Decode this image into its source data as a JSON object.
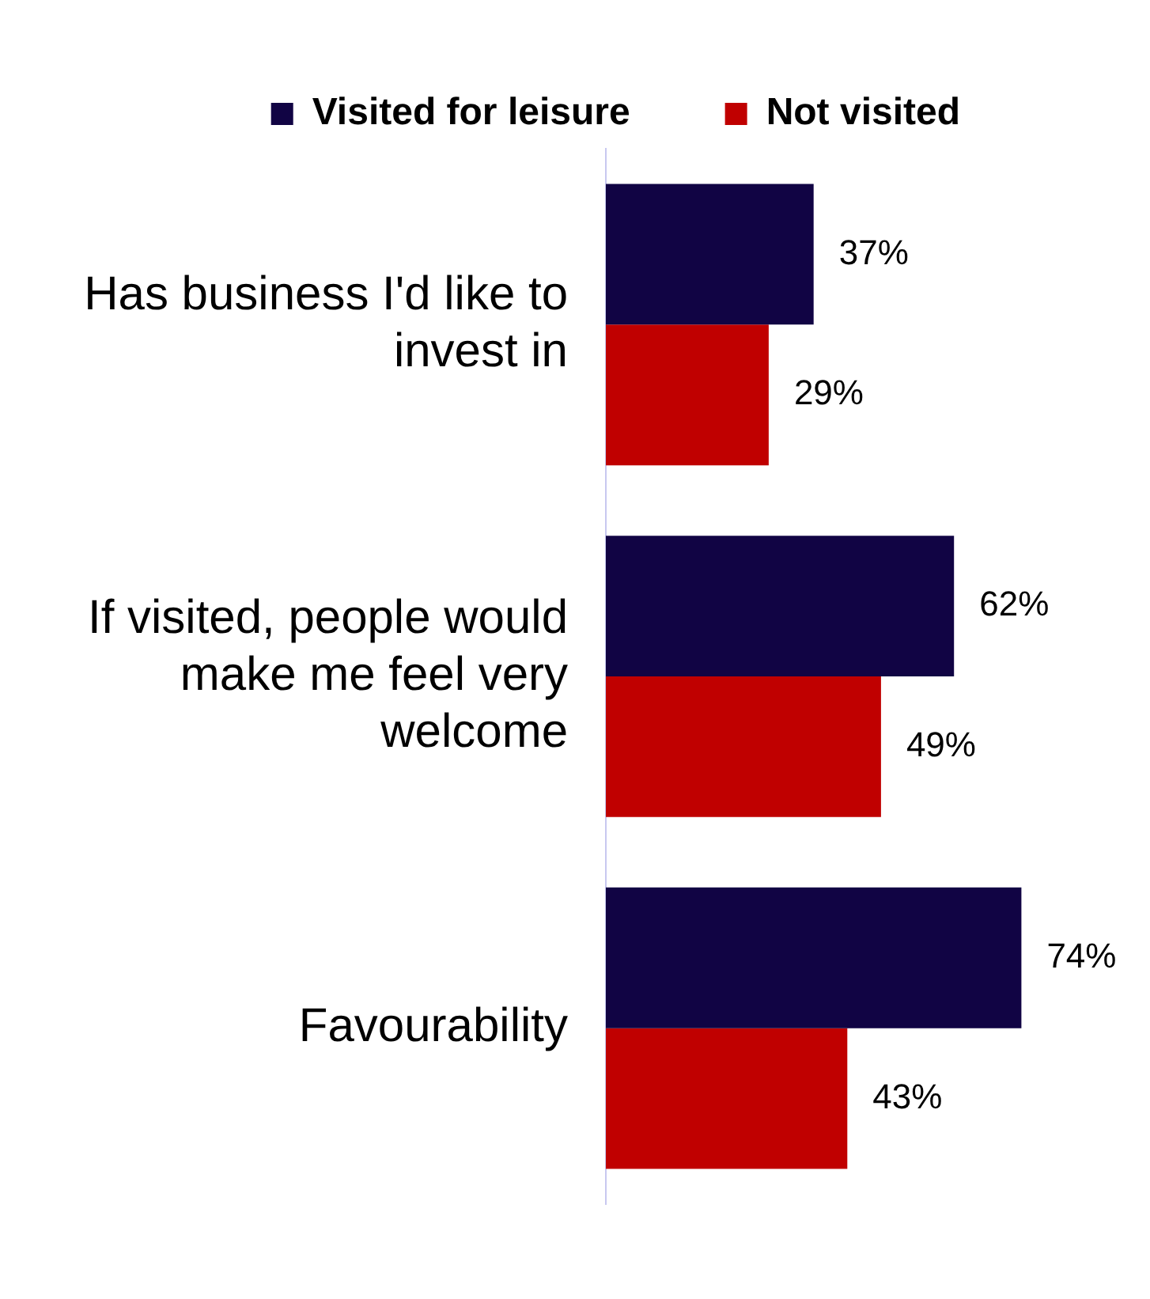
{
  "chart_data": {
    "type": "bar",
    "orientation": "horizontal",
    "categories": [
      "Has business I'd like to invest in",
      "If visited, people would make me feel very welcome",
      "Favourability"
    ],
    "series": [
      {
        "name": "Visited for leisure",
        "color": "#110444",
        "values": [
          37,
          62,
          74
        ],
        "value_labels": [
          "37%",
          "62%",
          "74%"
        ]
      },
      {
        "name": "Not visited",
        "color": "#c00000",
        "values": [
          29,
          49,
          43
        ],
        "value_labels": [
          "29%",
          "49%",
          "43%"
        ]
      }
    ],
    "grid": false,
    "legend": "top",
    "tick_labels": "y"
  }
}
